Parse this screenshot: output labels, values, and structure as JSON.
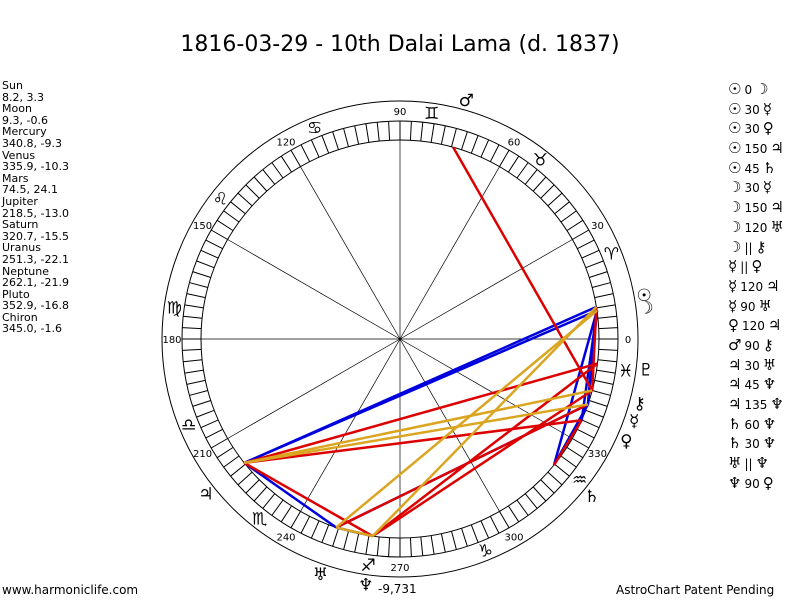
{
  "title": "1816-03-29 - 10th Dalai Lama (d. 1837)",
  "positions": [
    {
      "name": "Sun",
      "value": "8.2, 3.3"
    },
    {
      "name": "Moon",
      "value": "9.3, -0.6"
    },
    {
      "name": "Mercury",
      "value": "340.8, -9.3"
    },
    {
      "name": "Venus",
      "value": "335.9, -10.3"
    },
    {
      "name": "Mars",
      "value": "74.5, 24.1"
    },
    {
      "name": "Jupiter",
      "value": "218.5, -13.0"
    },
    {
      "name": "Saturn",
      "value": "320.7, -15.5"
    },
    {
      "name": "Uranus",
      "value": "251.3, -22.1"
    },
    {
      "name": "Neptune",
      "value": "262.1, -21.9"
    },
    {
      "name": "Pluto",
      "value": "352.9, -16.8"
    },
    {
      "name": "Chiron",
      "value": "345.0, -1.6"
    }
  ],
  "degree_labels": [
    "0",
    "30",
    "60",
    "90",
    "120",
    "150",
    "180",
    "210",
    "240",
    "270",
    "300",
    "330"
  ],
  "sign_glyphs": [
    "♈",
    "♉",
    "♊",
    "♋",
    "♌",
    "♍",
    "♎",
    "♏",
    "♐",
    "♑",
    "♒",
    "♓"
  ],
  "planet_glyphs": {
    "sun": "☉",
    "moon": "☽",
    "mercury": "☿",
    "venus": "♀",
    "mars": "♂",
    "jupiter": "♃",
    "saturn": "♄",
    "uranus": "♅",
    "neptune": "♆",
    "pluto": "♇",
    "chiron": "⚷"
  },
  "neptune_readout": "-9,731",
  "aspects": [
    {
      "a": "☉",
      "n": "0",
      "b": "☽"
    },
    {
      "a": "☉",
      "n": "30",
      "b": "☿"
    },
    {
      "a": "☉",
      "n": "30",
      "b": "♀"
    },
    {
      "a": "☉",
      "n": "150",
      "b": "♃"
    },
    {
      "a": "☉",
      "n": "45",
      "b": "♄"
    },
    {
      "a": "☽",
      "n": "30",
      "b": "☿"
    },
    {
      "a": "☽",
      "n": "150",
      "b": "♃"
    },
    {
      "a": "☽",
      "n": "120",
      "b": "♅"
    },
    {
      "a": "☽",
      "n": "||",
      "b": "⚷"
    },
    {
      "a": "☿",
      "n": "||",
      "b": "♀"
    },
    {
      "a": "☿",
      "n": "120",
      "b": "♃"
    },
    {
      "a": "☿",
      "n": "90",
      "b": "♅"
    },
    {
      "a": "♀",
      "n": "120",
      "b": "♃"
    },
    {
      "a": "♂",
      "n": "90",
      "b": "⚷"
    },
    {
      "a": "♃",
      "n": "30",
      "b": "♅"
    },
    {
      "a": "♃",
      "n": "45",
      "b": "♆"
    },
    {
      "a": "♃",
      "n": "135",
      "b": "♆"
    },
    {
      "a": "♄",
      "n": "60",
      "b": "♆"
    },
    {
      "a": "♄",
      "n": "30",
      "b": "♆"
    },
    {
      "a": "♅",
      "n": "||",
      "b": "♆"
    },
    {
      "a": "♆",
      "n": "90",
      "b": "♀"
    }
  ],
  "aspect_lines": [
    {
      "from": "sun",
      "to": "jupiter",
      "color": "#0000dd"
    },
    {
      "from": "moon",
      "to": "jupiter",
      "color": "#0000dd"
    },
    {
      "from": "sun",
      "to": "mercury",
      "color": "#0000dd"
    },
    {
      "from": "sun",
      "to": "venus",
      "color": "#0000dd"
    },
    {
      "from": "moon",
      "to": "mercury",
      "color": "#0000dd"
    },
    {
      "from": "sun",
      "to": "saturn",
      "color": "#0000dd"
    },
    {
      "from": "mercury",
      "to": "saturn",
      "color": "#0000dd"
    },
    {
      "from": "jupiter",
      "to": "uranus",
      "color": "#0000dd"
    },
    {
      "from": "uranus",
      "to": "neptune",
      "color": "#0000dd"
    },
    {
      "from": "mercury",
      "to": "uranus",
      "color": "#0000dd"
    },
    {
      "from": "mars",
      "to": "chiron",
      "color": "#dd0000"
    },
    {
      "from": "jupiter",
      "to": "venus",
      "color": "#dd0000"
    },
    {
      "from": "jupiter",
      "to": "pluto",
      "color": "#dd0000"
    },
    {
      "from": "jupiter",
      "to": "neptune",
      "color": "#dd0000"
    },
    {
      "from": "neptune",
      "to": "pluto",
      "color": "#dd0000"
    },
    {
      "from": "neptune",
      "to": "chiron",
      "color": "#dd0000"
    },
    {
      "from": "uranus",
      "to": "mercury",
      "color": "#dd0000"
    },
    {
      "from": "saturn",
      "to": "venus",
      "color": "#dd0000"
    },
    {
      "from": "moon",
      "to": "chiron",
      "color": "#dd0000"
    },
    {
      "from": "sun",
      "to": "uranus",
      "color": "#daa520"
    },
    {
      "from": "jupiter",
      "to": "chiron",
      "color": "#daa520"
    },
    {
      "from": "jupiter",
      "to": "mercury",
      "color": "#daa520"
    },
    {
      "from": "moon",
      "to": "neptune",
      "color": "#daa520"
    },
    {
      "from": "uranus",
      "to": "neptune",
      "color": "#daa520"
    }
  ],
  "footer_left": "www.harmoniclife.com",
  "footer_right": "AstroChart Patent Pending"
}
